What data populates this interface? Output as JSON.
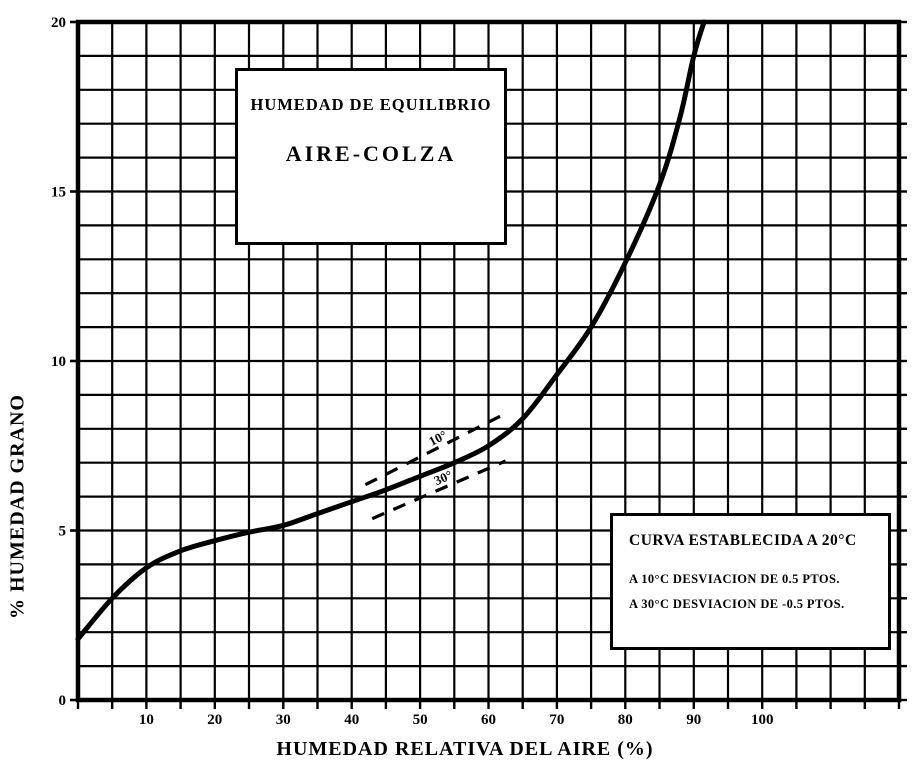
{
  "figure": {
    "background": "#ffffff",
    "ink_color": "#000000"
  },
  "title_box": {
    "line1": "HUMEDAD DE EQUILIBRIO",
    "line2": "AIRE-COLZA"
  },
  "note_box": {
    "title": "CURVA ESTABLECIDA A 20°C",
    "line1": "A 10°C DESVIACION DE 0.5 PTOS.",
    "line2": "A 30°C DESVIACION DE -0.5 PTOS."
  },
  "chart_data": {
    "type": "line",
    "title": "HUMEDAD DE EQUILIBRIO AIRE-COLZA",
    "xlabel": "HUMEDAD RELATIVA DEL AIRE (%)",
    "ylabel": "% HUMEDAD GRANO",
    "xlim": [
      0,
      120
    ],
    "ylim": [
      0,
      20
    ],
    "x_ticks": [
      10,
      20,
      30,
      40,
      50,
      60,
      70,
      80,
      90,
      100
    ],
    "y_ticks": [
      0,
      5,
      10,
      15,
      20
    ],
    "grid": {
      "on": true,
      "x_step": 5,
      "y_step": 1
    },
    "legend_position": "none",
    "series": [
      {
        "name": "curva de equilibrio 20°C",
        "style": "solid",
        "points": [
          [
            0,
            1.8
          ],
          [
            5,
            3.0
          ],
          [
            10,
            3.9
          ],
          [
            15,
            4.4
          ],
          [
            20,
            4.7
          ],
          [
            25,
            4.95
          ],
          [
            30,
            5.15
          ],
          [
            35,
            5.5
          ],
          [
            40,
            5.85
          ],
          [
            45,
            6.2
          ],
          [
            50,
            6.6
          ],
          [
            55,
            7.0
          ],
          [
            60,
            7.5
          ],
          [
            65,
            8.3
          ],
          [
            70,
            9.6
          ],
          [
            75,
            11.0
          ],
          [
            80,
            12.9
          ],
          [
            85,
            15.2
          ],
          [
            88,
            17.2
          ],
          [
            90,
            19.0
          ],
          [
            91.5,
            20.0
          ]
        ]
      },
      {
        "name": "desviacion 10°C",
        "style": "dashed",
        "label": "10°",
        "points": [
          [
            42,
            6.35
          ],
          [
            62,
            8.4
          ]
        ]
      },
      {
        "name": "desviacion 30°C",
        "style": "dashed",
        "label": "30°",
        "points": [
          [
            43,
            5.35
          ],
          [
            62.5,
            7.05
          ]
        ]
      }
    ]
  }
}
